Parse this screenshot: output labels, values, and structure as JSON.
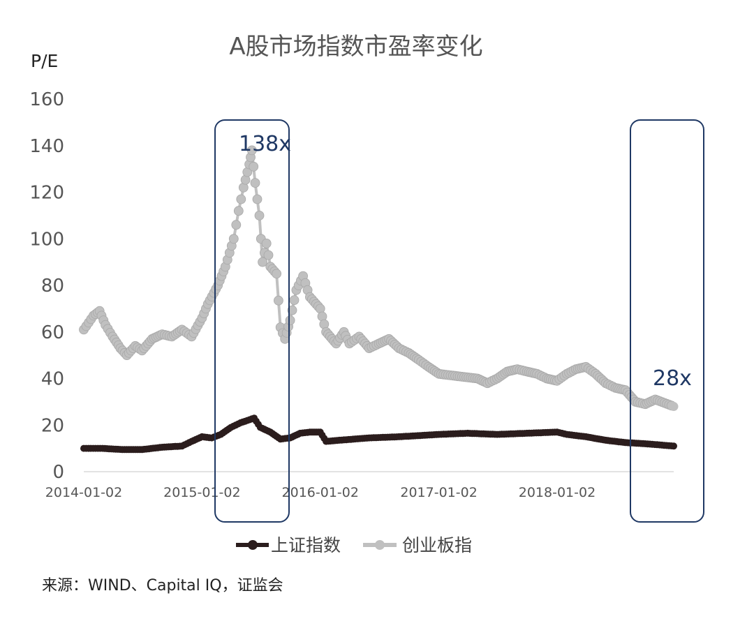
{
  "chart_data": {
    "type": "line",
    "title": "A股市场指数市盈率变化",
    "ylabel": "P/E",
    "xlabel": "",
    "ylim": [
      0,
      160
    ],
    "yticks": [
      "0",
      "20",
      "40",
      "60",
      "80",
      "100",
      "120",
      "140",
      "160"
    ],
    "xticks": [
      "2014-01-02",
      "2015-01-02",
      "2016-01-02",
      "2017-01-02",
      "2018-01-02"
    ],
    "x_range": [
      "2014-01-02",
      "2018-12-28"
    ],
    "grid": false,
    "legend_position": "bottom",
    "series": [
      {
        "name": "上证指数",
        "color": "#2b1d1d",
        "points": [
          [
            "2014-01-02",
            10
          ],
          [
            "2014-03-01",
            10
          ],
          [
            "2014-05-01",
            9.5
          ],
          [
            "2014-07-01",
            9.5
          ],
          [
            "2014-09-01",
            10.5
          ],
          [
            "2014-11-01",
            11
          ],
          [
            "2014-12-01",
            13
          ],
          [
            "2015-01-02",
            15
          ],
          [
            "2015-02-01",
            14.5
          ],
          [
            "2015-03-01",
            16
          ],
          [
            "2015-04-01",
            19
          ],
          [
            "2015-05-01",
            21
          ],
          [
            "2015-06-12",
            23
          ],
          [
            "2015-07-01",
            19
          ],
          [
            "2015-08-01",
            17
          ],
          [
            "2015-09-01",
            14
          ],
          [
            "2015-10-01",
            14.5
          ],
          [
            "2015-11-01",
            16.5
          ],
          [
            "2015-12-01",
            17
          ],
          [
            "2016-01-02",
            17
          ],
          [
            "2016-01-20",
            13
          ],
          [
            "2016-03-01",
            13.5
          ],
          [
            "2016-06-01",
            14.5
          ],
          [
            "2016-09-01",
            15
          ],
          [
            "2017-01-02",
            16
          ],
          [
            "2017-04-01",
            16.5
          ],
          [
            "2017-07-01",
            16
          ],
          [
            "2017-10-01",
            16.5
          ],
          [
            "2018-01-02",
            17
          ],
          [
            "2018-02-01",
            16
          ],
          [
            "2018-04-01",
            15
          ],
          [
            "2018-06-01",
            13.5
          ],
          [
            "2018-08-01",
            12.5
          ],
          [
            "2018-10-01",
            12
          ],
          [
            "2018-12-28",
            11
          ]
        ]
      },
      {
        "name": "创业板指",
        "color": "#c0c0c0",
        "points": [
          [
            "2014-01-02",
            61
          ],
          [
            "2014-02-01",
            67
          ],
          [
            "2014-02-20",
            69
          ],
          [
            "2014-03-10",
            63
          ],
          [
            "2014-04-01",
            58
          ],
          [
            "2014-04-25",
            53
          ],
          [
            "2014-05-15",
            50
          ],
          [
            "2014-06-10",
            54
          ],
          [
            "2014-07-01",
            52
          ],
          [
            "2014-08-01",
            57
          ],
          [
            "2014-09-01",
            59
          ],
          [
            "2014-10-01",
            58
          ],
          [
            "2014-11-01",
            61
          ],
          [
            "2014-12-01",
            58
          ],
          [
            "2015-01-02",
            66
          ],
          [
            "2015-01-20",
            72
          ],
          [
            "2015-02-20",
            80
          ],
          [
            "2015-03-15",
            88
          ],
          [
            "2015-04-10",
            100
          ],
          [
            "2015-04-25",
            112
          ],
          [
            "2015-05-10",
            122
          ],
          [
            "2015-05-28",
            132
          ],
          [
            "2015-06-05",
            138
          ],
          [
            "2015-06-15",
            124
          ],
          [
            "2015-06-28",
            110
          ],
          [
            "2015-07-08",
            90
          ],
          [
            "2015-07-20",
            98
          ],
          [
            "2015-08-01",
            88
          ],
          [
            "2015-08-20",
            85
          ],
          [
            "2015-09-01",
            62
          ],
          [
            "2015-09-15",
            57
          ],
          [
            "2015-10-01",
            65
          ],
          [
            "2015-10-20",
            78
          ],
          [
            "2015-11-10",
            84
          ],
          [
            "2015-12-01",
            75
          ],
          [
            "2016-01-02",
            70
          ],
          [
            "2016-01-20",
            60
          ],
          [
            "2016-02-20",
            55
          ],
          [
            "2016-03-15",
            60
          ],
          [
            "2016-04-01",
            55
          ],
          [
            "2016-05-01",
            58
          ],
          [
            "2016-06-01",
            53
          ],
          [
            "2016-07-01",
            55
          ],
          [
            "2016-08-01",
            57
          ],
          [
            "2016-09-01",
            53
          ],
          [
            "2016-10-01",
            51
          ],
          [
            "2016-11-01",
            48
          ],
          [
            "2016-12-01",
            45
          ],
          [
            "2017-01-02",
            42
          ],
          [
            "2017-03-01",
            41
          ],
          [
            "2017-05-01",
            40
          ],
          [
            "2017-06-01",
            38
          ],
          [
            "2017-07-01",
            40
          ],
          [
            "2017-08-01",
            43
          ],
          [
            "2017-09-01",
            44
          ],
          [
            "2017-10-01",
            43
          ],
          [
            "2017-11-01",
            42
          ],
          [
            "2017-12-01",
            40
          ],
          [
            "2018-01-02",
            39
          ],
          [
            "2018-02-01",
            42
          ],
          [
            "2018-03-01",
            44
          ],
          [
            "2018-04-01",
            45
          ],
          [
            "2018-05-01",
            42
          ],
          [
            "2018-06-01",
            38
          ],
          [
            "2018-07-01",
            36
          ],
          [
            "2018-08-01",
            35
          ],
          [
            "2018-09-01",
            30
          ],
          [
            "2018-10-01",
            29
          ],
          [
            "2018-11-01",
            31
          ],
          [
            "2018-12-28",
            28
          ]
        ]
      }
    ],
    "annotations": [
      "138x",
      "28x"
    ]
  },
  "source_note": "来源：WIND、Capital IQ，证监会"
}
